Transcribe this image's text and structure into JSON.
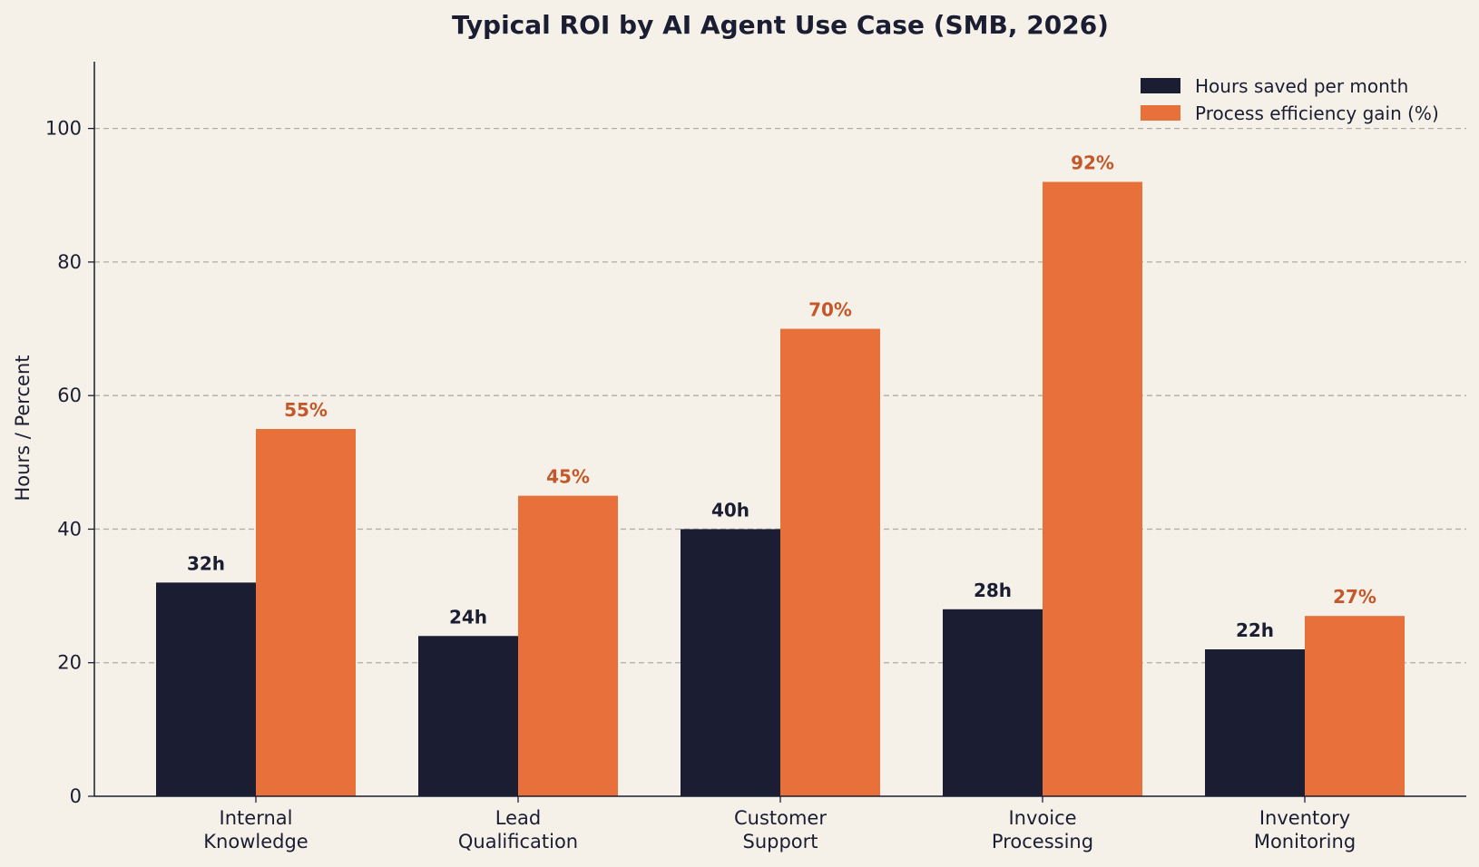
{
  "colors": {
    "background": "#f5f0e8",
    "hours": "#1b1e33",
    "efficiency": "#e8703a",
    "efficiency_label": "#c4582a",
    "text": "#1b1e33",
    "grid": "#b0aca6"
  },
  "chart_data": {
    "type": "bar",
    "title": "Typical ROI by AI Agent Use Case (SMB, 2026)",
    "xlabel": "",
    "ylabel": "Hours / Percent",
    "ylim": [
      0,
      110
    ],
    "yticks": [
      0,
      20,
      40,
      60,
      80,
      100
    ],
    "grid": "horizontal dashed",
    "legend_position": "top-right",
    "categories": [
      [
        "Internal",
        "Knowledge"
      ],
      [
        "Lead",
        "Qualification"
      ],
      [
        "Customer",
        "Support"
      ],
      [
        "Invoice",
        "Processing"
      ],
      [
        "Inventory",
        "Monitoring"
      ]
    ],
    "series": [
      {
        "name": "Hours saved per month",
        "values": [
          32,
          24,
          40,
          28,
          22
        ],
        "labels": [
          "32h",
          "24h",
          "40h",
          "28h",
          "22h"
        ]
      },
      {
        "name": "Process efficiency gain (%)",
        "values": [
          55,
          45,
          70,
          92,
          27
        ],
        "labels": [
          "55%",
          "45%",
          "70%",
          "92%",
          "27%"
        ]
      }
    ]
  }
}
